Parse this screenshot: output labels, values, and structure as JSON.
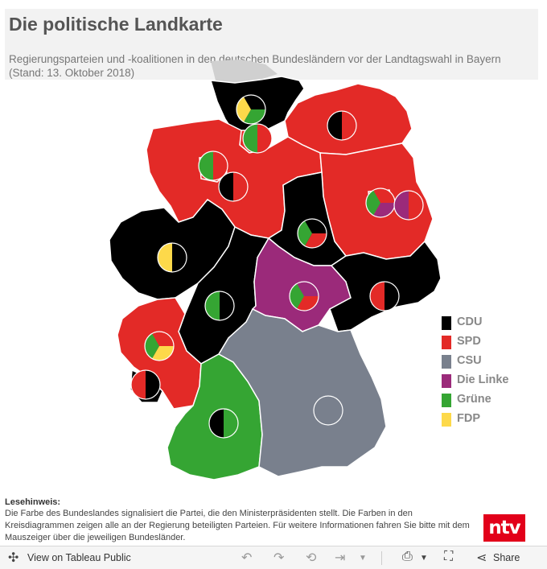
{
  "title": "Die politische Landkarte",
  "subtitle": "Regierungsparteien und -koalitionen in den deutschen Bundesländern vor der Landtagswahl in Bayern (Stand: 13. Oktober 2018)",
  "colors": {
    "CDU": "#000000",
    "SPD": "#e32a27",
    "CSU": "#79808d",
    "Linke": "#9b2a7a",
    "Gruene": "#35a533",
    "FDP": "#fdd94a",
    "border": "#ffffff",
    "background_shadow": "#d0d0d0"
  },
  "legend": [
    {
      "label": "CDU",
      "color": "#000000"
    },
    {
      "label": "SPD",
      "color": "#e32a27"
    },
    {
      "label": "CSU",
      "color": "#79808d"
    },
    {
      "label": "Die Linke",
      "color": "#9b2a7a"
    },
    {
      "label": "Grüne",
      "color": "#35a533"
    },
    {
      "label": "FDP",
      "color": "#fdd94a"
    }
  ],
  "states": [
    {
      "name": "Schleswig-Holstein",
      "ruling": "CDU",
      "coalition": [
        "CDU",
        "Gruene",
        "FDP"
      ]
    },
    {
      "name": "Hamburg",
      "ruling": "SPD",
      "coalition": [
        "SPD",
        "Gruene"
      ]
    },
    {
      "name": "Mecklenburg-Vorpommern",
      "ruling": "SPD",
      "coalition": [
        "SPD",
        "CDU"
      ]
    },
    {
      "name": "Bremen",
      "ruling": "SPD",
      "coalition": [
        "SPD",
        "Gruene"
      ]
    },
    {
      "name": "Niedersachsen",
      "ruling": "SPD",
      "coalition": [
        "SPD",
        "CDU"
      ]
    },
    {
      "name": "Berlin",
      "ruling": "SPD",
      "coalition": [
        "SPD",
        "Linke",
        "Gruene"
      ]
    },
    {
      "name": "Brandenburg",
      "ruling": "SPD",
      "coalition": [
        "SPD",
        "Linke"
      ]
    },
    {
      "name": "Sachsen-Anhalt",
      "ruling": "CDU",
      "coalition": [
        "CDU",
        "SPD",
        "Gruene"
      ]
    },
    {
      "name": "Nordrhein-Westfalen",
      "ruling": "CDU",
      "coalition": [
        "CDU",
        "FDP"
      ]
    },
    {
      "name": "Hessen",
      "ruling": "CDU",
      "coalition": [
        "CDU",
        "Gruene"
      ]
    },
    {
      "name": "Thüringen",
      "ruling": "Linke",
      "coalition": [
        "Linke",
        "SPD",
        "Gruene"
      ]
    },
    {
      "name": "Sachsen",
      "ruling": "CDU",
      "coalition": [
        "CDU",
        "SPD"
      ]
    },
    {
      "name": "Rheinland-Pfalz",
      "ruling": "SPD",
      "coalition": [
        "SPD",
        "FDP",
        "Gruene"
      ]
    },
    {
      "name": "Saarland",
      "ruling": "CDU",
      "coalition": [
        "CDU",
        "SPD"
      ]
    },
    {
      "name": "Baden-Württemberg",
      "ruling": "Gruene",
      "coalition": [
        "Gruene",
        "CDU"
      ]
    },
    {
      "name": "Bayern",
      "ruling": "CSU",
      "coalition": []
    }
  ],
  "note": {
    "heading": "Lesehinweis:",
    "text": "Die Farbe des Bundeslandes signalisiert die Partei, die den Ministerpräsidenten stellt. Die Farben in den Kreisdiagrammen zeigen alle an der Regierung beteiligten Parteien. Für weitere Informationen fahren Sie bitte mit dem Mauszeiger über die jeweiligen Bundesländer."
  },
  "logo_text": "ntv",
  "toolbar": {
    "view_label": "View on Tableau Public",
    "share_label": "Share"
  },
  "icons": {
    "tableau": "tableau-logo-icon",
    "undo": "undo-icon",
    "redo": "redo-icon",
    "revert": "revert-icon",
    "forward": "forward-icon",
    "download": "download-icon",
    "fullscreen": "fullscreen-icon",
    "share": "share-icon"
  }
}
